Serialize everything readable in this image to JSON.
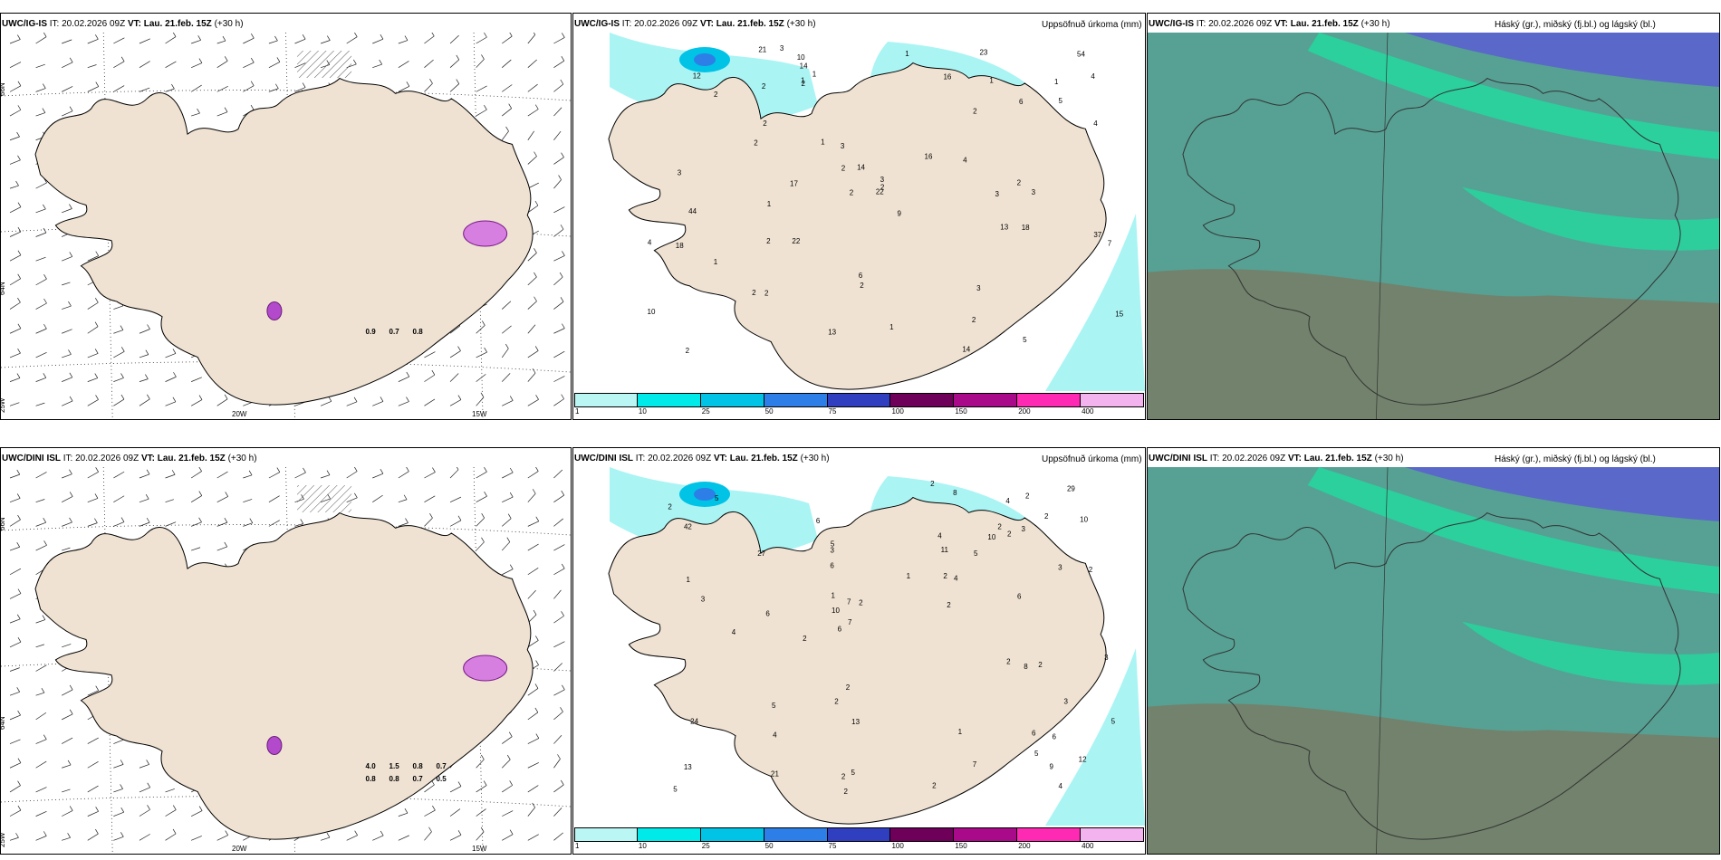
{
  "rows": [
    {
      "model": "UWC/IG-IS",
      "it_label": "IT:",
      "it_value": "20.02.2026 09Z",
      "vt_label": "VT:",
      "vt_value": "Lau. 21.feb. 15Z",
      "lead": "(+30 h)",
      "precip_numbers": [
        "22",
        "4",
        "12",
        "17",
        "14",
        "5",
        "10",
        "15",
        "13",
        "54",
        "22",
        "18",
        "1",
        "37",
        "1",
        "23",
        "2",
        "14",
        "1",
        "9",
        "4",
        "1",
        "2",
        "2",
        "1",
        "3",
        "3",
        "1",
        "4",
        "3",
        "2",
        "2",
        "2",
        "1",
        "3",
        "2",
        "2",
        "1",
        "2",
        "3",
        "3",
        "6",
        "10",
        "2",
        "1",
        "2",
        "3",
        "2",
        "5",
        "2",
        "13",
        "2",
        "2",
        "6",
        "18",
        "16",
        "16",
        "14",
        "44",
        "21",
        "7",
        "2",
        "4"
      ],
      "wind_labels": [
        "0.9",
        "0.7",
        "0.8"
      ]
    },
    {
      "model": "UWC/DINI ISL",
      "it_label": "IT:",
      "it_value": "20.02.2026 09Z",
      "vt_label": "VT:",
      "vt_value": "Lau. 21.feb. 15Z",
      "lead": "(+30 h)",
      "precip_numbers": [
        "2",
        "6",
        "2",
        "29",
        "13",
        "11",
        "10",
        "24",
        "42",
        "13",
        "2",
        "2",
        "6",
        "7",
        "2",
        "2",
        "2",
        "5",
        "4",
        "5",
        "6",
        "2",
        "7",
        "1",
        "9",
        "8",
        "4",
        "2",
        "5",
        "6",
        "2",
        "3",
        "3",
        "3",
        "2",
        "4",
        "2",
        "1",
        "27",
        "21",
        "3",
        "5",
        "4",
        "4",
        "5",
        "10",
        "5",
        "2",
        "2",
        "5",
        "6",
        "7",
        "6",
        "8",
        "2",
        "10",
        "3",
        "2",
        "12",
        "6",
        "3",
        "2",
        "5",
        "1",
        "4",
        "1",
        "2"
      ],
      "wind_labels": [
        "4.0",
        "1.5",
        "0.8",
        "0.7",
        "0.8",
        "0.8",
        "0.7",
        "0.5"
      ]
    }
  ],
  "precip_title": "Uppsöfnuð úrkoma (mm)",
  "cloud_title": "Háský (gr.), miðský (fj.bl.) og lágský (bl.)",
  "axis_labels": {
    "lat_66": "66N",
    "lat_64": "64N",
    "lon_25": "25W",
    "lon_20": "20W",
    "lon_15": "15W"
  },
  "legend": {
    "ticks": [
      "1",
      "10",
      "25",
      "50",
      "75",
      "100",
      "150",
      "200",
      "400"
    ],
    "colors": [
      "#b9f6f4",
      "#00eaea",
      "#00c3e6",
      "#2d7ee6",
      "#2f3fbf",
      "#6e005a",
      "#a80a8a",
      "#ff2ab4",
      "#f2b3ef"
    ]
  },
  "colors": {
    "land": "#efe2d2",
    "precip_light": "#a6f3f3",
    "cloud_low": "#4d9c8e",
    "cloud_high_green": "#1ee0a0",
    "cloud_high_blue": "#5a5ad6",
    "cloud_mid_brown": "#8a6a4a"
  }
}
